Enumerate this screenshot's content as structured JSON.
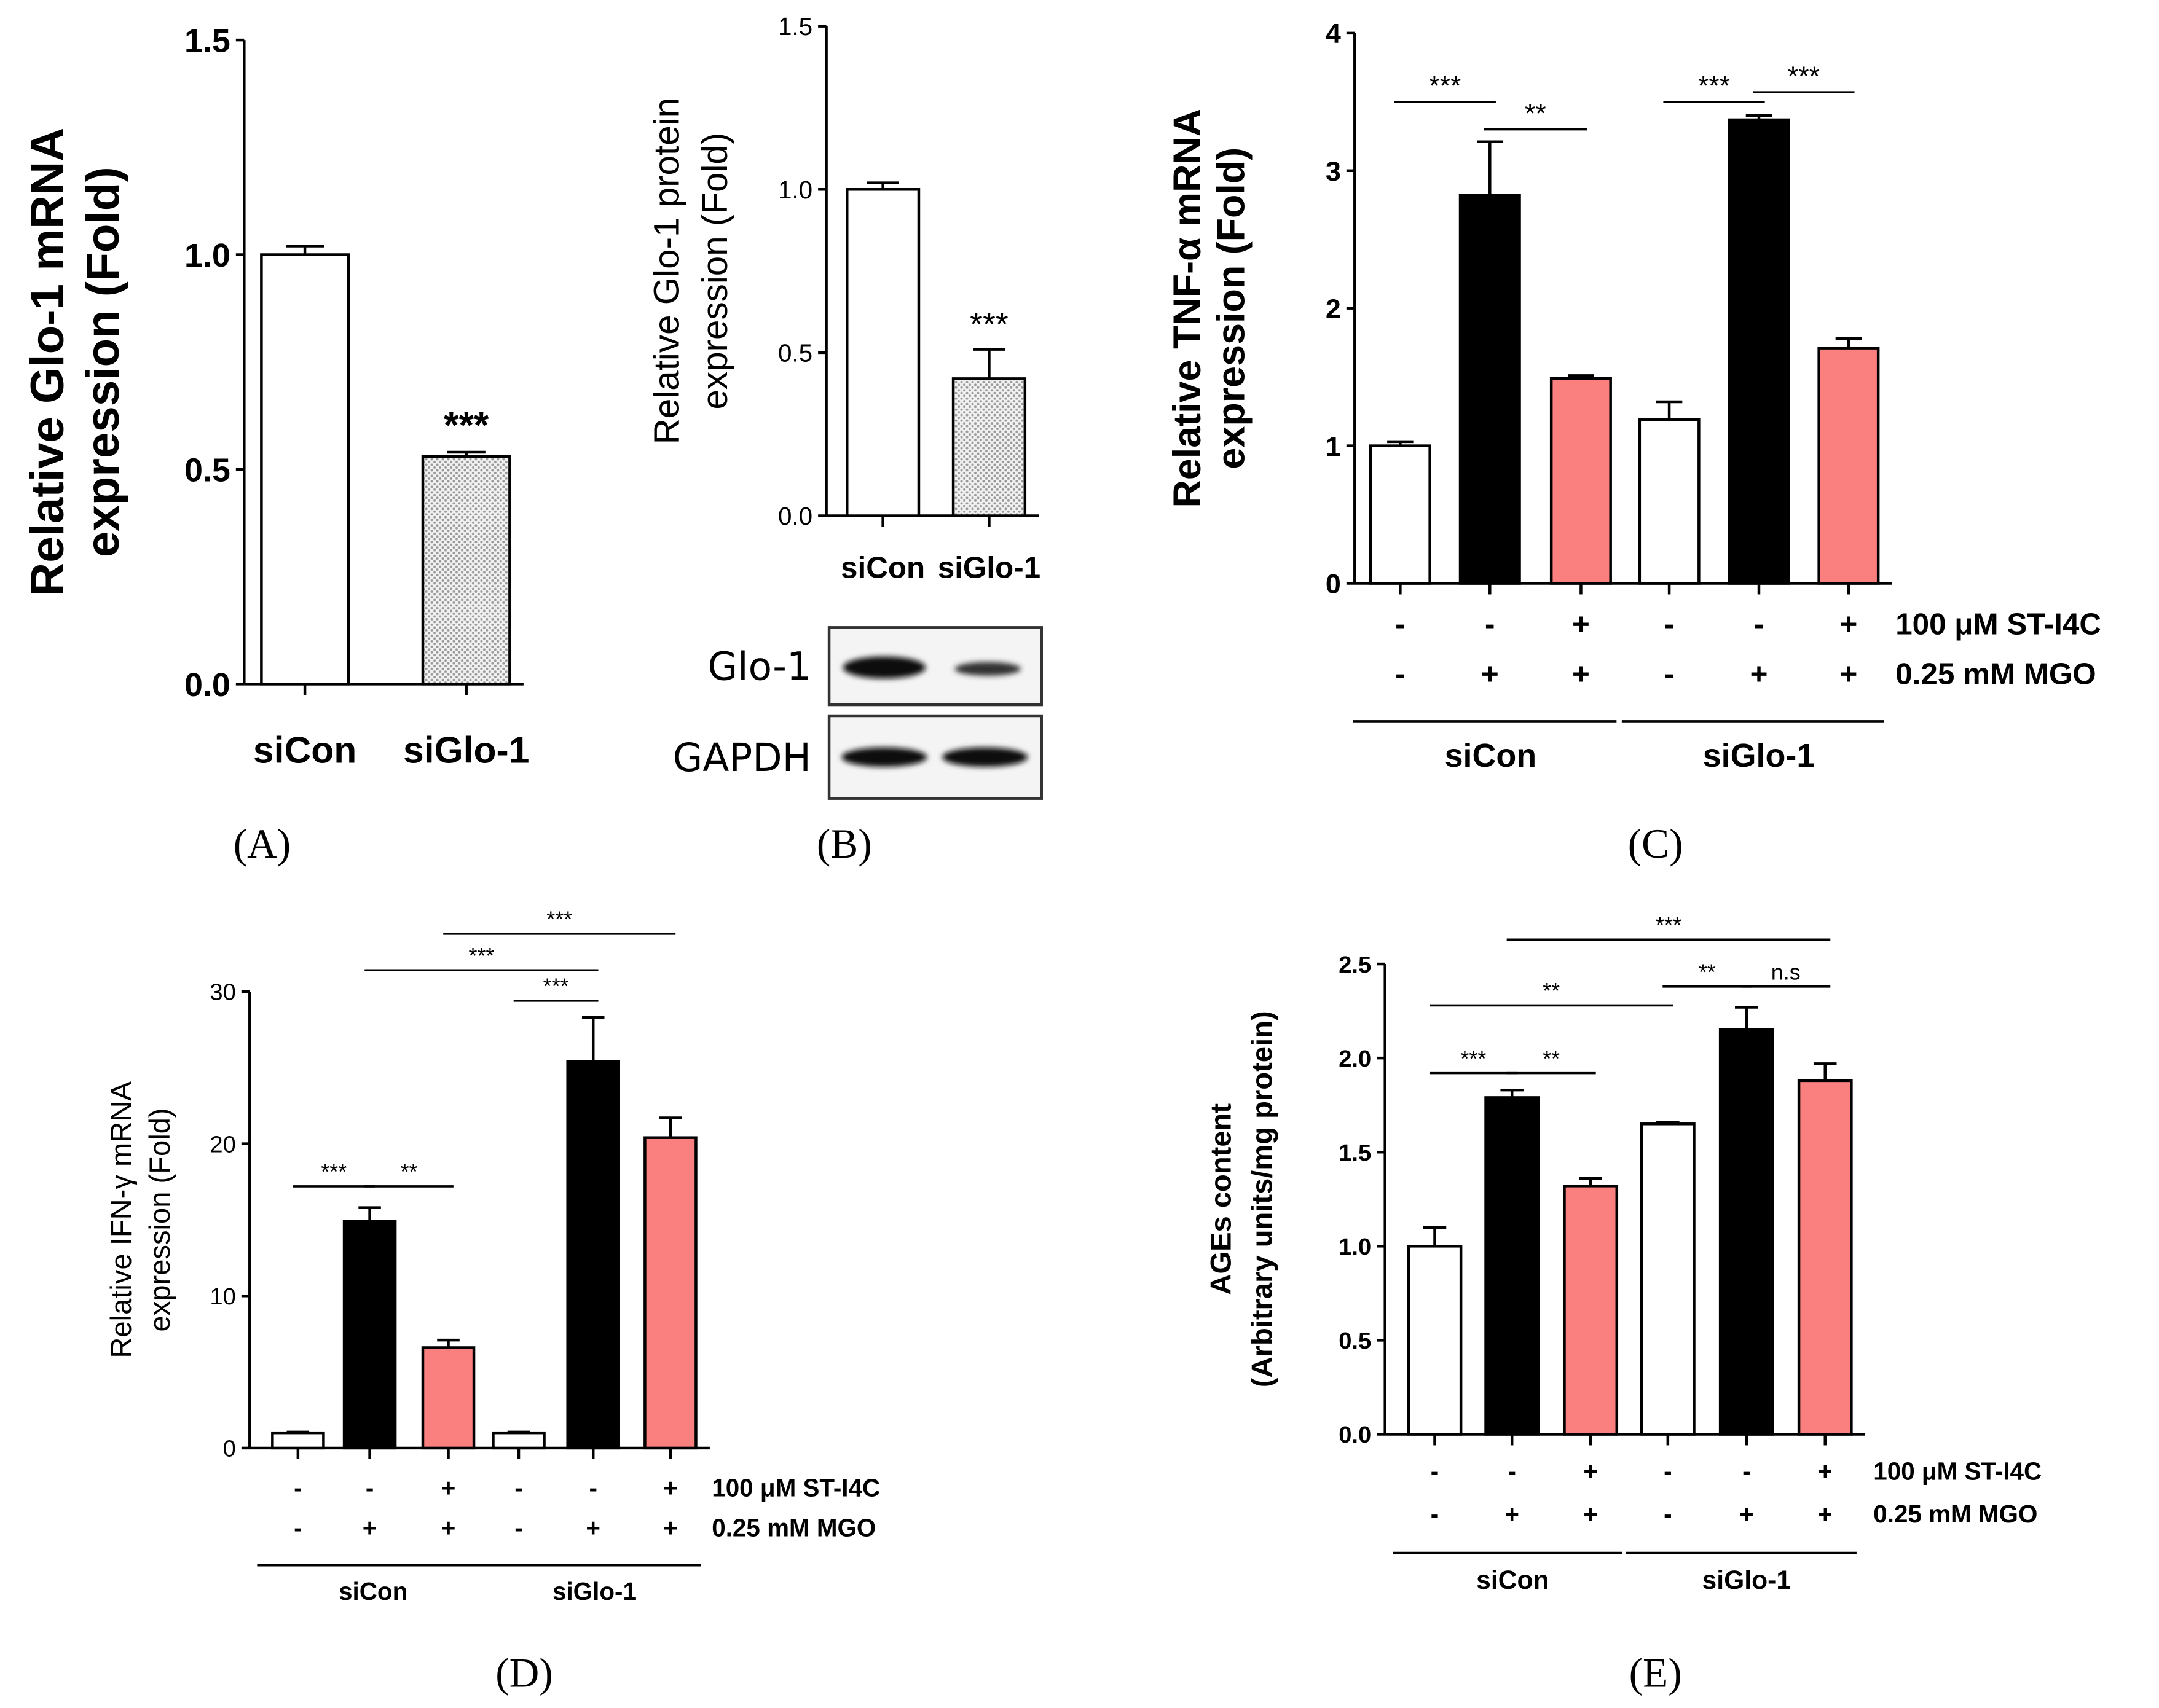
{
  "colors": {
    "white_bar": "#ffffff",
    "black_bar": "#000000",
    "pink_bar": "#fa8080",
    "grey_bar": "#d4d4d4",
    "axis": "#000000"
  },
  "treatment_labels": {
    "st": "100 μM ST-I4C",
    "mgo": "0.25 mM MGO"
  },
  "chart_data": [
    {
      "panel": "(A)",
      "type": "bar",
      "ylabel_line1": "Relative Glo-1 mRNA",
      "ylabel_line2": "expression (Fold)",
      "ylim": [
        0,
        1.5
      ],
      "yticks": [
        "0.0",
        "0.5",
        "1.0",
        "1.5"
      ],
      "categories": [
        "siCon",
        "siGlo-1"
      ],
      "values": [
        1.0,
        0.53
      ],
      "errors": [
        0.02,
        0.01
      ],
      "significance": [
        "",
        "***"
      ]
    },
    {
      "panel": "(B)",
      "type": "bar",
      "ylabel_line1": "Relative Glo-1 protein",
      "ylabel_line2": "expression (Fold)",
      "ylim": [
        0,
        1.5
      ],
      "yticks": [
        "0.0",
        "0.5",
        "1.0",
        "1.5"
      ],
      "categories": [
        "siCon",
        "siGlo-1"
      ],
      "values": [
        1.0,
        0.42
      ],
      "errors": [
        0.02,
        0.09
      ],
      "significance": [
        "",
        "***"
      ],
      "blot_labels": [
        "Glo-1",
        "GAPDH"
      ]
    },
    {
      "panel": "(C)",
      "type": "bar",
      "ylabel_line1": "Relative TNF-α mRNA",
      "ylabel_line2": "expression (Fold)",
      "ylim": [
        0,
        4
      ],
      "yticks": [
        "0",
        "1",
        "2",
        "3",
        "4"
      ],
      "values": [
        1.0,
        2.82,
        1.49,
        1.19,
        3.37,
        1.71
      ],
      "errors": [
        0.03,
        0.39,
        0.02,
        0.13,
        0.03,
        0.07
      ],
      "st_signs": [
        "-",
        "-",
        "+",
        "-",
        "-",
        "+"
      ],
      "mgo_signs": [
        "-",
        "+",
        "+",
        "-",
        "+",
        "+"
      ],
      "groups": [
        "siCon",
        "siGlo-1"
      ],
      "brackets": [
        {
          "from": 0,
          "to": 1,
          "y": 3.5,
          "label": "***"
        },
        {
          "from": 1,
          "to": 2,
          "y": 3.3,
          "label": "**"
        },
        {
          "from": 3,
          "to": 4,
          "y": 3.5,
          "label": "***"
        },
        {
          "from": 4,
          "to": 5,
          "y": 3.57,
          "label": "***"
        }
      ]
    },
    {
      "panel": "(D)",
      "type": "bar",
      "ylabel_line1": "Relative IFN-γ mRNA",
      "ylabel_line2": "expression (Fold)",
      "ylim": [
        0,
        30
      ],
      "yticks": [
        "0",
        "10",
        "20",
        "30"
      ],
      "values": [
        1.0,
        14.9,
        6.6,
        1.0,
        25.4,
        20.4
      ],
      "errors": [
        0.05,
        0.9,
        0.5,
        0.05,
        2.9,
        1.3
      ],
      "st_signs": [
        "-",
        "-",
        "+",
        "-",
        "-",
        "+"
      ],
      "mgo_signs": [
        "-",
        "+",
        "+",
        "-",
        "+",
        "+"
      ],
      "groups": [
        "siCon",
        "siGlo-1"
      ],
      "brackets": [
        {
          "from": 0,
          "to": 1,
          "y": 17.2,
          "label": "***"
        },
        {
          "from": 1,
          "to": 2,
          "y": 17.2,
          "label": "**"
        },
        {
          "from": 3,
          "to": 4,
          "y": 29.4,
          "label": "***"
        },
        {
          "from": 1,
          "to": 4,
          "y": 31.4,
          "label": "***"
        },
        {
          "from": 2,
          "to": 5,
          "y": 33.8,
          "label": "***"
        }
      ]
    },
    {
      "panel": "(E)",
      "type": "bar",
      "ylabel_line1": "AGEs content",
      "ylabel_line2": "(Arbitrary units/mg protein)",
      "ylim": [
        0,
        2.5
      ],
      "yticks": [
        "0.0",
        "0.5",
        "1.0",
        "1.5",
        "2.0",
        "2.5"
      ],
      "values": [
        1.0,
        1.79,
        1.32,
        1.65,
        2.15,
        1.88
      ],
      "errors": [
        0.1,
        0.04,
        0.04,
        0.01,
        0.12,
        0.09
      ],
      "st_signs": [
        "-",
        "-",
        "+",
        "-",
        "-",
        "+"
      ],
      "mgo_signs": [
        "-",
        "+",
        "+",
        "-",
        "+",
        "+"
      ],
      "groups": [
        "siCon",
        "siGlo-1"
      ],
      "brackets": [
        {
          "from": 0,
          "to": 1,
          "y": 1.92,
          "label": "***"
        },
        {
          "from": 1,
          "to": 2,
          "y": 1.92,
          "label": "**"
        },
        {
          "from": 0,
          "to": 3,
          "y": 2.28,
          "label": "**"
        },
        {
          "from": 3,
          "to": 4,
          "y": 2.38,
          "label": "**"
        },
        {
          "from": 4,
          "to": 5,
          "y": 2.38,
          "label": "n.s"
        },
        {
          "from": 1,
          "to": 5,
          "y": 2.63,
          "label": "***"
        }
      ]
    }
  ]
}
